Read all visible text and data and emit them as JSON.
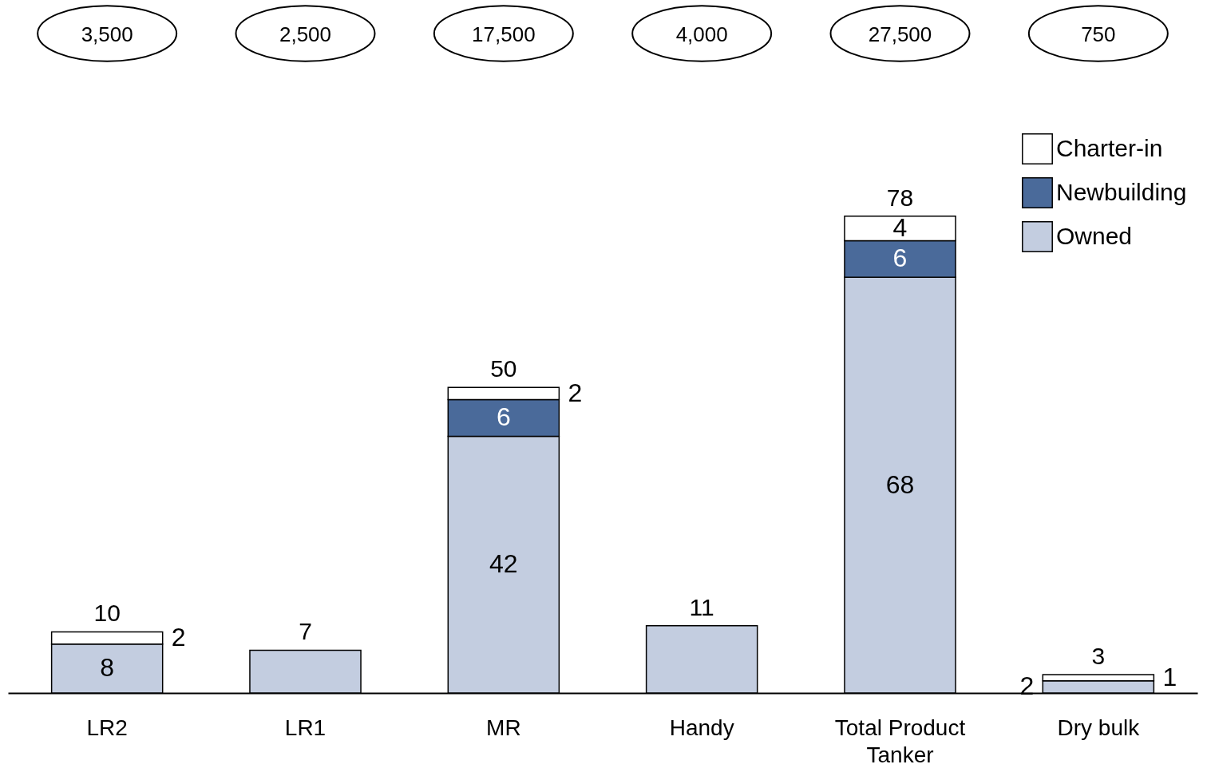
{
  "chart_data": {
    "type": "bar",
    "stacked": true,
    "categories": [
      "LR2",
      "LR1",
      "MR",
      "Handy",
      "Total Product Tanker",
      "Dry bulk"
    ],
    "series": [
      {
        "name": "Owned",
        "color": "#c3cde0",
        "values": [
          8,
          7,
          42,
          11,
          68,
          2
        ],
        "value_labels": [
          "8",
          null,
          "42",
          null,
          "68",
          "2"
        ]
      },
      {
        "name": "Newbuilding",
        "color": "#4a6a9a",
        "values": [
          null,
          null,
          6,
          null,
          6,
          null
        ],
        "value_labels": [
          null,
          null,
          "6",
          null,
          "6",
          null
        ]
      },
      {
        "name": "Charter-in",
        "color": "#ffffff",
        "values": [
          2,
          null,
          2,
          null,
          4,
          1
        ],
        "value_labels": [
          "2",
          null,
          "2",
          null,
          "4",
          "1"
        ]
      }
    ],
    "totals": [
      "10",
      "7",
      "50",
      "11",
      "78",
      "3"
    ],
    "annotations": [
      "3,500",
      "2,500",
      "17,500",
      "4,000",
      "27,500",
      "750"
    ],
    "legend": "top right",
    "grid": false
  }
}
